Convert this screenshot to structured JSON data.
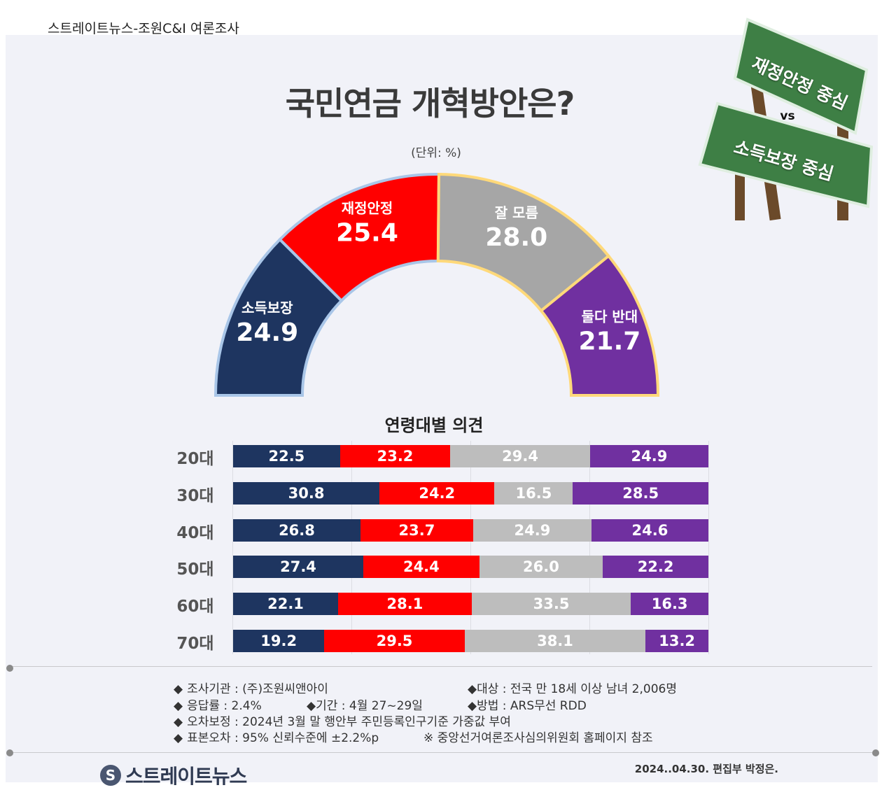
{
  "header": {
    "source": "스트레이트뉴스-조원C&I 여론조사"
  },
  "title": "국민연금 개혁방안은?",
  "unit": "(단위: %)",
  "sign": {
    "top": "재정안정 중심",
    "vs": "vs",
    "bottom": "소득보장 중심"
  },
  "colors": {
    "soduk": "#1e3560",
    "jaejeong": "#ff0000",
    "moreum": "#a6a6a6",
    "bandae": "#7030a0"
  },
  "chart_data": [
    {
      "type": "pie",
      "shape": "semicircle-donut",
      "categories": [
        "소득보장",
        "재정안정",
        "잘 모름",
        "둘다 반대"
      ],
      "values": [
        24.9,
        25.4,
        28.0,
        21.7
      ],
      "value_labels": [
        "24.9",
        "25.4",
        "28.0",
        "21.7"
      ]
    },
    {
      "type": "bar",
      "orientation": "horizontal",
      "stacked": true,
      "title": "연령대별 의견",
      "categories": [
        "20대",
        "30대",
        "40대",
        "50대",
        "60대",
        "70대"
      ],
      "series": [
        {
          "values": [
            22.5,
            30.8,
            26.8,
            27.4,
            22.1,
            19.2
          ],
          "labels": [
            "22.5",
            "30.8",
            "26.8",
            "27.4",
            "22.1",
            "19.2"
          ]
        },
        {
          "values": [
            23.2,
            24.2,
            23.7,
            24.4,
            28.1,
            29.5
          ],
          "labels": [
            "23.2",
            "24.2",
            "23.7",
            "24.4",
            "28.1",
            "29.5"
          ]
        },
        {
          "values": [
            29.4,
            16.5,
            24.9,
            26.0,
            33.5,
            38.1
          ],
          "labels": [
            "29.4",
            "16.5",
            "24.9",
            "26.0",
            "33.5",
            "38.1"
          ]
        },
        {
          "values": [
            24.9,
            28.5,
            24.6,
            22.2,
            16.3,
            13.2
          ],
          "labels": [
            "24.9",
            "28.5",
            "24.6",
            "22.2",
            "16.3",
            "13.2"
          ]
        }
      ]
    }
  ],
  "footnotes": {
    "agency": "조사기관 : (주)조원씨앤아이",
    "target": "◆대상 : 전국 만 18세 이상 남녀 2,006명",
    "response": "응답률 : 2.4%",
    "period": "◆기간 : 4월 27~29일",
    "method": "◆방법 : ARS무선 RDD",
    "weighting": "오차보정 : 2024년 3월 말 행안부 주민등록인구기준 가중값 부여",
    "error": "표본오차 : 95% 신뢰수준에 ±2.2%p",
    "note": "※ 중앙선거여론조사심의위원회 홈페이지 참조",
    "diamond": "◆"
  },
  "footer": {
    "logo": "스트레이트뉴스",
    "logo_mark": "S",
    "signature": "2024..04.30. 편집부 박정은."
  }
}
